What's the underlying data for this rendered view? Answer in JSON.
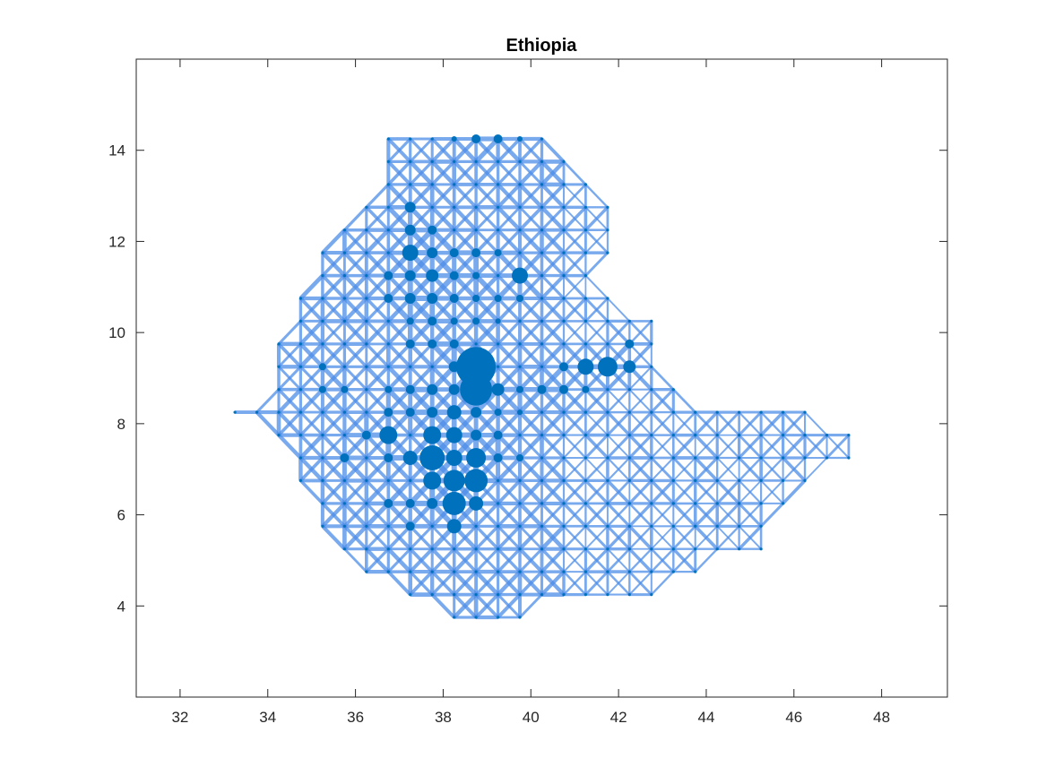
{
  "chart_data": {
    "type": "scatter",
    "title": "Ethiopia",
    "xlabel": "",
    "ylabel": "",
    "xlim": [
      31,
      49.5
    ],
    "ylim": [
      2,
      16
    ],
    "xticks": [
      32,
      34,
      36,
      38,
      40,
      42,
      44,
      46,
      48
    ],
    "yticks": [
      4,
      6,
      8,
      10,
      12,
      14
    ],
    "grid": false,
    "colors": {
      "nodes": "#0072bd",
      "edges": "#4d8ee8"
    },
    "grid_step_deg": 0.5,
    "edge_width_scale": [
      0.6,
      6
    ],
    "region_rows": [
      {
        "y": 14.25,
        "x_min": 36.75,
        "x_max": 40.25
      },
      {
        "y": 13.75,
        "x_min": 36.75,
        "x_max": 40.75
      },
      {
        "y": 13.25,
        "x_min": 36.75,
        "x_max": 41.25
      },
      {
        "y": 12.75,
        "x_min": 36.25,
        "x_max": 41.75
      },
      {
        "y": 12.25,
        "x_min": 35.75,
        "x_max": 41.75
      },
      {
        "y": 11.75,
        "x_min": 35.25,
        "x_max": 41.75
      },
      {
        "y": 11.25,
        "x_min": 35.25,
        "x_max": 41.25
      },
      {
        "y": 10.75,
        "x_min": 34.75,
        "x_max": 41.75
      },
      {
        "y": 10.25,
        "x_min": 34.75,
        "x_max": 42.75
      },
      {
        "y": 9.75,
        "x_min": 34.25,
        "x_max": 42.75
      },
      {
        "y": 9.25,
        "x_min": 34.25,
        "x_max": 42.75
      },
      {
        "y": 8.75,
        "x_min": 34.25,
        "x_max": 43.25
      },
      {
        "y": 8.25,
        "x_min": 33.25,
        "x_max": 46.25
      },
      {
        "y": 7.75,
        "x_min": 34.25,
        "x_max": 47.25
      },
      {
        "y": 7.25,
        "x_min": 34.75,
        "x_max": 47.25
      },
      {
        "y": 6.75,
        "x_min": 34.75,
        "x_max": 46.25
      },
      {
        "y": 6.25,
        "x_min": 35.25,
        "x_max": 45.75
      },
      {
        "y": 5.75,
        "x_min": 35.25,
        "x_max": 45.25
      },
      {
        "y": 5.25,
        "x_min": 35.75,
        "x_max": 45.25
      },
      {
        "y": 4.75,
        "x_min": 36.25,
        "x_max": 43.75
      },
      {
        "y": 4.25,
        "x_min": 37.25,
        "x_max": 42.75
      },
      {
        "y": 3.75,
        "x_min": 38.25,
        "x_max": 39.75
      }
    ],
    "nodes": [
      {
        "x": 38.75,
        "y": 14.25,
        "r": 5
      },
      {
        "x": 39.25,
        "y": 14.25,
        "r": 5
      },
      {
        "x": 38.25,
        "y": 14.25,
        "r": 3
      },
      {
        "x": 39.75,
        "y": 14.25,
        "r": 3
      },
      {
        "x": 37.25,
        "y": 12.75,
        "r": 6
      },
      {
        "x": 37.25,
        "y": 12.25,
        "r": 6
      },
      {
        "x": 37.25,
        "y": 11.75,
        "r": 9
      },
      {
        "x": 37.75,
        "y": 12.25,
        "r": 5
      },
      {
        "x": 37.75,
        "y": 11.75,
        "r": 6
      },
      {
        "x": 37.75,
        "y": 11.25,
        "r": 7
      },
      {
        "x": 37.25,
        "y": 11.25,
        "r": 6
      },
      {
        "x": 36.75,
        "y": 11.25,
        "r": 5
      },
      {
        "x": 36.75,
        "y": 10.75,
        "r": 5
      },
      {
        "x": 37.25,
        "y": 10.75,
        "r": 6
      },
      {
        "x": 37.75,
        "y": 10.75,
        "r": 6
      },
      {
        "x": 38.25,
        "y": 10.75,
        "r": 5
      },
      {
        "x": 38.75,
        "y": 10.75,
        "r": 4
      },
      {
        "x": 39.25,
        "y": 10.75,
        "r": 4
      },
      {
        "x": 39.75,
        "y": 10.75,
        "r": 4
      },
      {
        "x": 39.75,
        "y": 11.25,
        "r": 9
      },
      {
        "x": 38.75,
        "y": 11.75,
        "r": 5
      },
      {
        "x": 38.25,
        "y": 11.75,
        "r": 5
      },
      {
        "x": 39.25,
        "y": 11.75,
        "r": 4
      },
      {
        "x": 38.25,
        "y": 11.25,
        "r": 5
      },
      {
        "x": 38.75,
        "y": 11.25,
        "r": 4
      },
      {
        "x": 38.75,
        "y": 9.25,
        "r": 22
      },
      {
        "x": 38.75,
        "y": 8.75,
        "r": 18
      },
      {
        "x": 39.25,
        "y": 8.75,
        "r": 7
      },
      {
        "x": 38.25,
        "y": 9.25,
        "r": 6
      },
      {
        "x": 38.25,
        "y": 8.75,
        "r": 6
      },
      {
        "x": 37.75,
        "y": 8.75,
        "r": 6
      },
      {
        "x": 37.75,
        "y": 8.25,
        "r": 6
      },
      {
        "x": 38.25,
        "y": 8.25,
        "r": 8
      },
      {
        "x": 38.75,
        "y": 8.25,
        "r": 6
      },
      {
        "x": 37.75,
        "y": 7.75,
        "r": 10
      },
      {
        "x": 38.25,
        "y": 7.75,
        "r": 9
      },
      {
        "x": 38.75,
        "y": 7.75,
        "r": 6
      },
      {
        "x": 36.75,
        "y": 7.75,
        "r": 10
      },
      {
        "x": 37.75,
        "y": 7.25,
        "r": 14
      },
      {
        "x": 37.25,
        "y": 7.25,
        "r": 8
      },
      {
        "x": 38.25,
        "y": 7.25,
        "r": 9
      },
      {
        "x": 38.75,
        "y": 7.25,
        "r": 11
      },
      {
        "x": 37.75,
        "y": 6.75,
        "r": 10
      },
      {
        "x": 38.25,
        "y": 6.75,
        "r": 12
      },
      {
        "x": 38.75,
        "y": 6.75,
        "r": 13
      },
      {
        "x": 38.25,
        "y": 6.25,
        "r": 13
      },
      {
        "x": 38.75,
        "y": 6.25,
        "r": 8
      },
      {
        "x": 37.75,
        "y": 6.25,
        "r": 6
      },
      {
        "x": 37.25,
        "y": 6.25,
        "r": 5
      },
      {
        "x": 36.75,
        "y": 6.25,
        "r": 5
      },
      {
        "x": 38.25,
        "y": 5.75,
        "r": 8
      },
      {
        "x": 37.25,
        "y": 5.75,
        "r": 5
      },
      {
        "x": 41.25,
        "y": 9.25,
        "r": 9
      },
      {
        "x": 41.75,
        "y": 9.25,
        "r": 11
      },
      {
        "x": 42.25,
        "y": 9.25,
        "r": 7
      },
      {
        "x": 40.75,
        "y": 9.25,
        "r": 5
      },
      {
        "x": 40.75,
        "y": 8.75,
        "r": 5
      },
      {
        "x": 41.25,
        "y": 8.75,
        "r": 4
      },
      {
        "x": 42.25,
        "y": 9.75,
        "r": 5
      },
      {
        "x": 40.25,
        "y": 8.75,
        "r": 5
      },
      {
        "x": 39.75,
        "y": 8.75,
        "r": 4
      },
      {
        "x": 37.25,
        "y": 8.75,
        "r": 5
      },
      {
        "x": 36.75,
        "y": 8.75,
        "r": 4
      },
      {
        "x": 37.25,
        "y": 8.25,
        "r": 5
      },
      {
        "x": 36.75,
        "y": 8.25,
        "r": 5
      },
      {
        "x": 37.25,
        "y": 9.75,
        "r": 5
      },
      {
        "x": 37.75,
        "y": 9.75,
        "r": 5
      },
      {
        "x": 38.25,
        "y": 9.75,
        "r": 5
      },
      {
        "x": 37.75,
        "y": 10.25,
        "r": 5
      },
      {
        "x": 37.25,
        "y": 10.25,
        "r": 4
      },
      {
        "x": 39.25,
        "y": 7.75,
        "r": 5
      },
      {
        "x": 39.25,
        "y": 7.25,
        "r": 5
      },
      {
        "x": 39.75,
        "y": 7.25,
        "r": 4
      },
      {
        "x": 36.25,
        "y": 7.75,
        "r": 5
      },
      {
        "x": 35.75,
        "y": 7.25,
        "r": 5
      },
      {
        "x": 36.75,
        "y": 7.25,
        "r": 5
      },
      {
        "x": 35.75,
        "y": 8.75,
        "r": 4
      },
      {
        "x": 35.25,
        "y": 8.75,
        "r": 4
      },
      {
        "x": 35.25,
        "y": 9.25,
        "r": 4
      },
      {
        "x": 39.25,
        "y": 8.25,
        "r": 4
      },
      {
        "x": 39.75,
        "y": 8.25,
        "r": 3
      },
      {
        "x": 38.25,
        "y": 10.25,
        "r": 4
      },
      {
        "x": 38.75,
        "y": 10.25,
        "r": 4
      },
      {
        "x": 39.25,
        "y": 10.25,
        "r": 3
      }
    ]
  }
}
